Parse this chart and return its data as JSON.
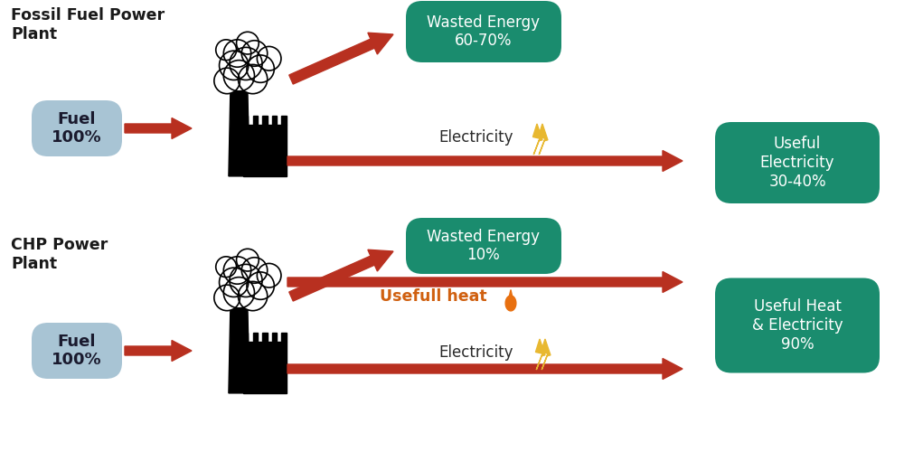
{
  "bg_color": "#ffffff",
  "arrow_color": "#b83020",
  "fuel_box_color": "#a8c4d4",
  "output_box_color": "#1a8c6e",
  "wasted_box_color": "#1a8c6e",
  "fuel_text_color": "#1a1a2e",
  "output_text_color": "#ffffff",
  "title_top": "Fossil Fuel Power\nPlant",
  "title_bottom": "CHP Power\nPlant",
  "title_color": "#1a1a1a",
  "fossil_fuel_label": "Fuel\n100%",
  "chp_fuel_label": "Fuel\n100%",
  "fossil_wasted_label": "Wasted Energy\n60-70%",
  "fossil_electricity_label": "Useful\nElectricity\n30-40%",
  "chp_wasted_label": "Wasted Energy\n10%",
  "chp_output_label": "Useful Heat\n& Electricity\n90%",
  "electricity_label_fossil": "Electricity",
  "electricity_label_chp": "Electricity",
  "usefull_heat_label": "Usefull heat",
  "lightning_color": "#e8b830",
  "flame_color": "#e87010",
  "elec_text_color": "#2a2a2a",
  "heat_text_color": "#d06010"
}
